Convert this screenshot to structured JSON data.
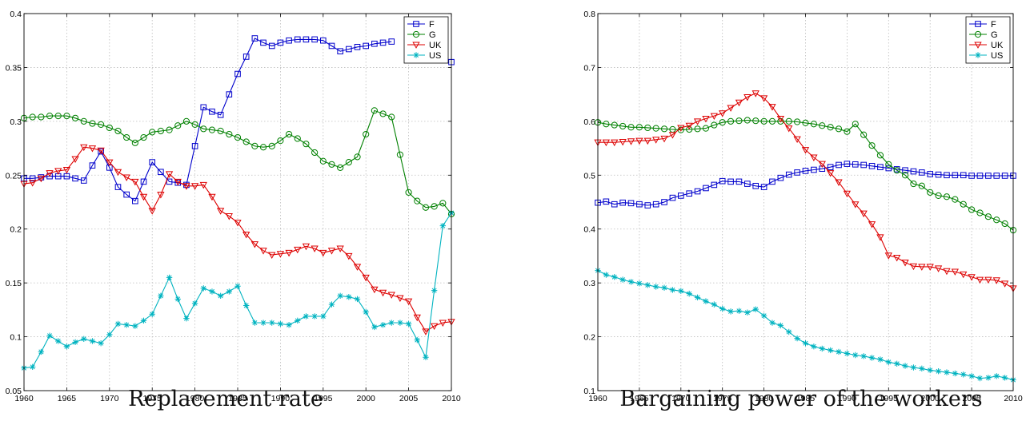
{
  "chart_data": [
    {
      "type": "line",
      "caption": "Replacement rate",
      "xlim": [
        1960,
        2010
      ],
      "ylim": [
        0.05,
        0.4
      ],
      "xticks": [
        "1960",
        "1965",
        "1970",
        "1975",
        "1980",
        "1985",
        "1990",
        "1995",
        "2000",
        "2005",
        "2010"
      ],
      "yticks": [
        "0.05",
        "0.1",
        "0.15",
        "0.2",
        "0.25",
        "0.3",
        "0.35",
        "0.4"
      ],
      "grid": true,
      "legend_position": "top-right",
      "x": [
        1960,
        1961,
        1962,
        1963,
        1964,
        1965,
        1966,
        1967,
        1968,
        1969,
        1970,
        1971,
        1972,
        1973,
        1974,
        1975,
        1976,
        1977,
        1978,
        1979,
        1980,
        1981,
        1982,
        1983,
        1984,
        1985,
        1986,
        1987,
        1988,
        1989,
        1990,
        1991,
        1992,
        1993,
        1994,
        1995,
        1996,
        1997,
        1998,
        1999,
        2000,
        2001,
        2002,
        2003,
        2004,
        2005,
        2006,
        2007,
        2008,
        2009,
        2010
      ],
      "series": [
        {
          "name": "F",
          "color": "#0000cc",
          "marker": "square",
          "values": [
            0.247,
            0.247,
            0.248,
            0.249,
            0.249,
            0.249,
            0.247,
            0.245,
            0.259,
            0.272,
            0.257,
            0.239,
            0.232,
            0.226,
            0.244,
            0.262,
            0.253,
            0.244,
            0.243,
            0.241,
            0.277,
            0.313,
            0.309,
            0.306,
            0.325,
            0.344,
            0.36,
            0.377,
            0.373,
            0.37,
            0.373,
            0.375,
            0.376,
            0.376,
            0.376,
            0.375,
            0.37,
            0.365,
            0.367,
            0.369,
            0.37,
            0.372,
            0.373,
            0.374,
            null,
            null,
            null,
            null,
            null,
            null,
            0.355
          ]
        },
        {
          "name": "G",
          "color": "#008000",
          "marker": "circle",
          "values": [
            0.303,
            0.304,
            0.304,
            0.305,
            0.305,
            0.305,
            0.303,
            0.3,
            0.298,
            0.297,
            0.294,
            0.291,
            0.285,
            0.28,
            0.285,
            0.29,
            0.291,
            0.292,
            0.296,
            0.3,
            0.297,
            0.293,
            0.292,
            0.291,
            0.288,
            0.285,
            0.281,
            0.277,
            0.276,
            0.277,
            0.282,
            0.288,
            0.284,
            0.279,
            0.271,
            0.263,
            0.26,
            0.257,
            0.262,
            0.267,
            0.288,
            0.31,
            0.307,
            0.304,
            0.269,
            0.234,
            0.226,
            0.22,
            0.221,
            0.224,
            0.214
          ]
        },
        {
          "name": "UK",
          "color": "#dd0000",
          "marker": "triangle-down",
          "values": [
            0.242,
            0.243,
            0.247,
            0.252,
            0.254,
            0.255,
            0.265,
            0.276,
            0.275,
            0.273,
            0.262,
            0.253,
            0.248,
            0.244,
            0.23,
            0.217,
            0.232,
            0.251,
            0.244,
            0.24,
            0.24,
            0.241,
            0.23,
            0.217,
            0.212,
            0.206,
            0.195,
            0.186,
            0.18,
            0.176,
            0.177,
            0.178,
            0.181,
            0.184,
            0.182,
            0.178,
            0.18,
            0.182,
            0.175,
            0.165,
            0.155,
            0.144,
            0.141,
            0.139,
            0.136,
            0.133,
            0.118,
            0.105,
            0.11,
            0.113,
            0.114
          ]
        },
        {
          "name": "US",
          "color": "#00b3c0",
          "marker": "star",
          "values": [
            0.071,
            0.072,
            0.086,
            0.101,
            0.096,
            0.091,
            0.095,
            0.098,
            0.096,
            0.094,
            0.102,
            0.112,
            0.111,
            0.11,
            0.115,
            0.121,
            0.138,
            0.155,
            0.135,
            0.117,
            0.131,
            0.145,
            0.142,
            0.138,
            0.142,
            0.147,
            0.129,
            0.113,
            0.113,
            0.113,
            0.112,
            0.111,
            0.115,
            0.119,
            0.119,
            0.119,
            0.13,
            0.138,
            0.137,
            0.135,
            0.123,
            0.109,
            0.111,
            0.113,
            0.113,
            0.112,
            0.097,
            0.081,
            0.143,
            0.203,
            0.215
          ]
        }
      ]
    },
    {
      "type": "line",
      "caption": "Bargaining power of the workers",
      "xlim": [
        1960,
        2010
      ],
      "ylim": [
        0.1,
        0.8
      ],
      "xticks": [
        "1960",
        "1965",
        "1970",
        "1975",
        "1980",
        "1985",
        "1990",
        "1995",
        "2000",
        "2005",
        "2010"
      ],
      "yticks": [
        "0.1",
        "0.2",
        "0.3",
        "0.4",
        "0.5",
        "0.6",
        "0.7",
        "0.8"
      ],
      "grid": true,
      "legend_position": "top-right",
      "x": [
        1960,
        1961,
        1962,
        1963,
        1964,
        1965,
        1966,
        1967,
        1968,
        1969,
        1970,
        1971,
        1972,
        1973,
        1974,
        1975,
        1976,
        1977,
        1978,
        1979,
        1980,
        1981,
        1982,
        1983,
        1984,
        1985,
        1986,
        1987,
        1988,
        1989,
        1990,
        1991,
        1992,
        1993,
        1994,
        1995,
        1996,
        1997,
        1998,
        1999,
        2000,
        2001,
        2002,
        2003,
        2004,
        2005,
        2006,
        2007,
        2008,
        2009,
        2010
      ],
      "series": [
        {
          "name": "F",
          "color": "#0000cc",
          "marker": "square",
          "values": [
            0.449,
            0.451,
            0.446,
            0.449,
            0.448,
            0.446,
            0.444,
            0.446,
            0.45,
            0.458,
            0.462,
            0.466,
            0.47,
            0.476,
            0.482,
            0.489,
            0.488,
            0.488,
            0.484,
            0.48,
            0.478,
            0.488,
            0.495,
            0.501,
            0.505,
            0.508,
            0.51,
            0.512,
            0.515,
            0.519,
            0.521,
            0.52,
            0.519,
            0.517,
            0.515,
            0.513,
            0.511,
            0.509,
            0.507,
            0.505,
            0.502,
            0.501,
            0.5,
            0.5,
            0.5,
            0.499,
            0.499,
            0.499,
            0.499,
            0.499,
            0.499
          ]
        },
        {
          "name": "G",
          "color": "#008000",
          "marker": "circle",
          "values": [
            0.598,
            0.595,
            0.593,
            0.591,
            0.589,
            0.589,
            0.588,
            0.587,
            0.586,
            0.585,
            0.584,
            0.585,
            0.586,
            0.587,
            0.593,
            0.598,
            0.6,
            0.601,
            0.602,
            0.601,
            0.6,
            0.6,
            0.6,
            0.6,
            0.599,
            0.597,
            0.595,
            0.592,
            0.589,
            0.586,
            0.581,
            0.595,
            0.575,
            0.555,
            0.537,
            0.52,
            0.509,
            0.5,
            0.484,
            0.48,
            0.468,
            0.462,
            0.46,
            0.455,
            0.446,
            0.436,
            0.43,
            0.423,
            0.417,
            0.41,
            0.398
          ]
        },
        {
          "name": "UK",
          "color": "#dd0000",
          "marker": "triangle-down",
          "values": [
            0.561,
            0.561,
            0.561,
            0.562,
            0.563,
            0.564,
            0.564,
            0.566,
            0.568,
            0.575,
            0.588,
            0.592,
            0.6,
            0.605,
            0.61,
            0.615,
            0.625,
            0.635,
            0.645,
            0.652,
            0.643,
            0.627,
            0.605,
            0.587,
            0.567,
            0.547,
            0.533,
            0.521,
            0.504,
            0.487,
            0.466,
            0.446,
            0.429,
            0.409,
            0.385,
            0.351,
            0.347,
            0.338,
            0.331,
            0.33,
            0.33,
            0.327,
            0.322,
            0.321,
            0.316,
            0.311,
            0.306,
            0.306,
            0.305,
            0.299,
            0.29
          ]
        },
        {
          "name": "US",
          "color": "#00b3c0",
          "marker": "star",
          "values": [
            0.323,
            0.315,
            0.311,
            0.306,
            0.302,
            0.299,
            0.296,
            0.293,
            0.291,
            0.287,
            0.285,
            0.28,
            0.273,
            0.266,
            0.26,
            0.252,
            0.247,
            0.248,
            0.245,
            0.251,
            0.239,
            0.226,
            0.221,
            0.209,
            0.197,
            0.188,
            0.182,
            0.178,
            0.175,
            0.172,
            0.169,
            0.166,
            0.164,
            0.161,
            0.158,
            0.153,
            0.15,
            0.146,
            0.143,
            0.141,
            0.138,
            0.136,
            0.134,
            0.132,
            0.13,
            0.127,
            0.123,
            0.124,
            0.127,
            0.124,
            0.12
          ]
        }
      ]
    }
  ]
}
